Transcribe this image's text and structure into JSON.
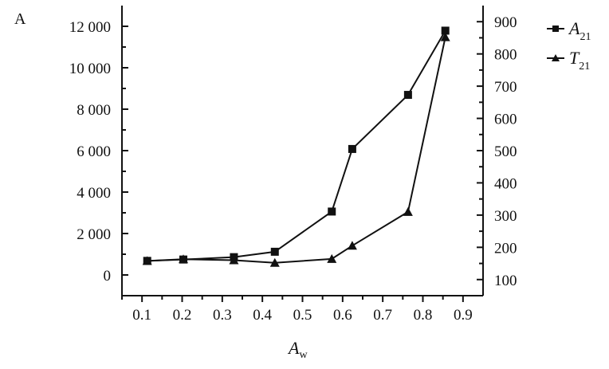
{
  "panel_label": "A",
  "chart_data": {
    "type": "line",
    "title": "",
    "xlabel": "A",
    "xlabel_subscript": "w",
    "x_ticks": [
      "0.1",
      "0.2",
      "0.3",
      "0.4",
      "0.5",
      "0.6",
      "0.7",
      "0.8",
      "0.9"
    ],
    "xlim": [
      0.05,
      0.95
    ],
    "y_left": {
      "ticks": [
        "0",
        "2 000",
        "4 000",
        "6 000",
        "8 000",
        "10 000",
        "12 000"
      ],
      "tick_values": [
        0,
        2000,
        4000,
        6000,
        8000,
        10000,
        12000
      ],
      "ylim": [
        -1000,
        13000
      ]
    },
    "y_right": {
      "ticks": [
        "100",
        "200",
        "300",
        "400",
        "500",
        "600",
        "700",
        "800",
        "900"
      ],
      "tick_values": [
        100,
        200,
        300,
        400,
        500,
        600,
        700,
        800,
        900
      ],
      "ylim": [
        50,
        950
      ]
    },
    "grid": false,
    "legend_placement": "top-right outside",
    "series": [
      {
        "name": "A",
        "name_subscript": "21",
        "axis": "left",
        "marker": "square",
        "x": [
          0.113,
          0.203,
          0.329,
          0.431,
          0.573,
          0.624,
          0.763,
          0.856
        ],
        "values": [
          680,
          745,
          860,
          1120,
          3060,
          6080,
          8690,
          11790
        ]
      },
      {
        "name": "T",
        "name_subscript": "21",
        "axis": "right",
        "marker": "triangle",
        "x": [
          0.113,
          0.203,
          0.329,
          0.431,
          0.573,
          0.624,
          0.763,
          0.856
        ],
        "values": [
          158,
          163,
          160,
          152,
          164,
          205,
          310,
          852
        ]
      }
    ],
    "colors": {
      "line": "#111111"
    }
  }
}
